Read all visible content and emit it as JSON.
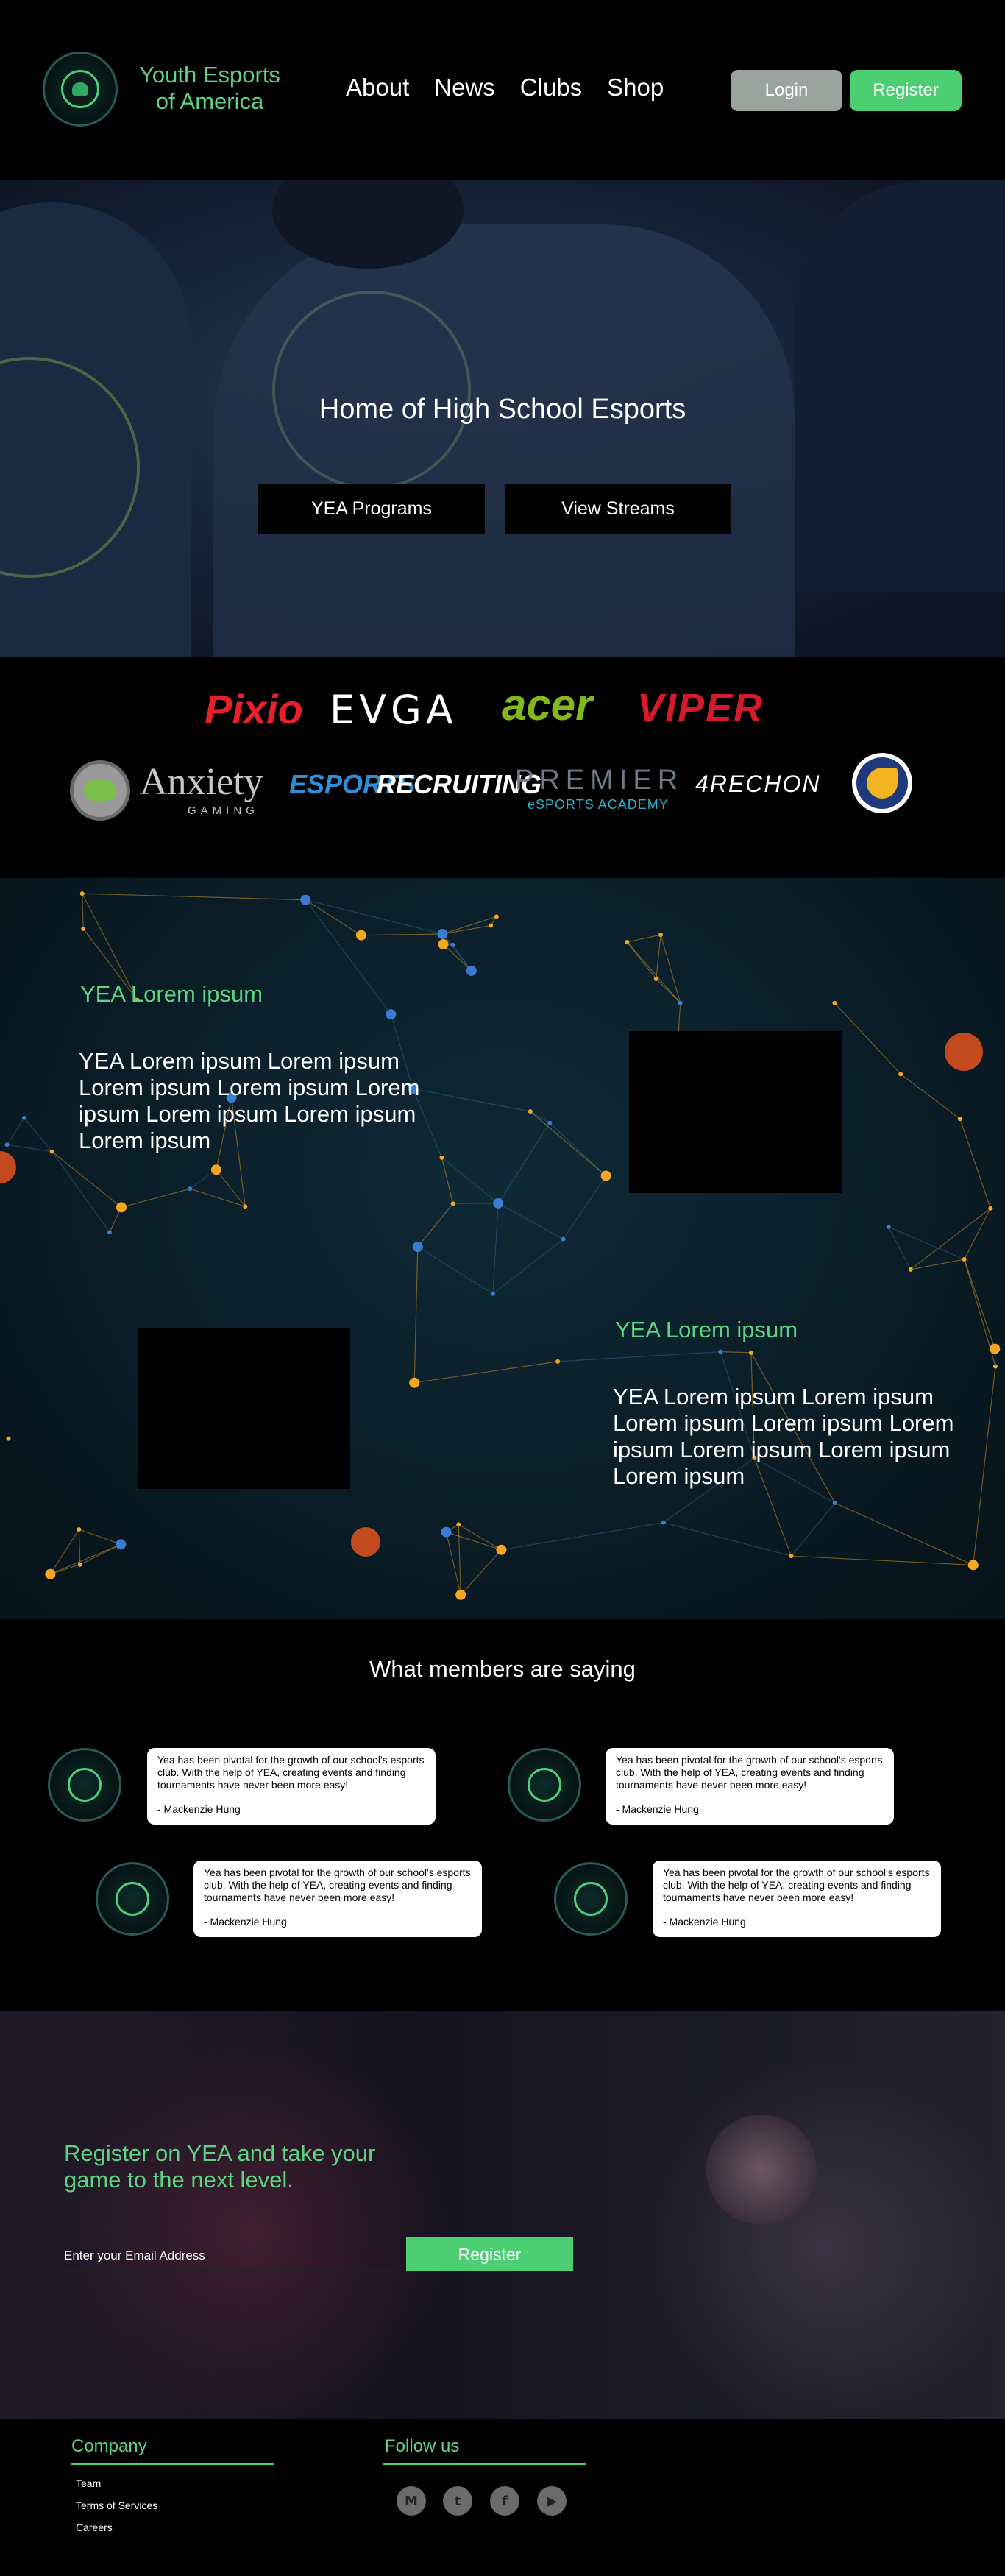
{
  "header": {
    "brand_line1": "Youth Esports",
    "brand_line2": "of America",
    "nav": [
      "About",
      "News",
      "Clubs",
      "Shop"
    ],
    "login_label": "Login",
    "register_label": "Register",
    "logo_icon": "yea-seal-logo"
  },
  "hero": {
    "title": "Home of High School Esports",
    "buttons": [
      "YEA Programs",
      "View Streams"
    ]
  },
  "sponsors": {
    "row1": [
      "Pixio",
      "EVGA",
      "acer",
      "VIPER"
    ],
    "row2": [
      "Anxiety",
      "GAMING",
      "ESPORTS",
      "RECRUITING",
      "PREMIER",
      "eSPORTS ACADEMY",
      "4RECHON"
    ]
  },
  "features": [
    {
      "heading": "YEA Lorem ipsum",
      "body": "YEA Lorem ipsum Lorem ipsum Lorem ipsum Lorem ipsum Lorem ipsum Lorem ipsum Lorem ipsum Lorem ipsum"
    },
    {
      "heading": "YEA Lorem ipsum",
      "body": "YEA Lorem ipsum Lorem ipsum Lorem ipsum Lorem ipsum Lorem ipsum Lorem ipsum Lorem ipsum Lorem ipsum"
    }
  ],
  "testimonials": {
    "title": "What members are saying",
    "items": [
      {
        "quote": "Yea has been pivotal for the growth of our school's esports club. With the help of YEA, creating events and finding tournaments have never been more easy!",
        "author": "- Mackenzie Hung"
      },
      {
        "quote": "Yea has been pivotal for the growth of our school's esports club. With the help of YEA, creating events and finding tournaments have never been more easy!",
        "author": "- Mackenzie Hung"
      },
      {
        "quote": "Yea has been pivotal for the growth of our school's esports club. With the help of YEA, creating events and finding tournaments have never been more easy!",
        "author": "- Mackenzie Hung"
      },
      {
        "quote": "Yea has been pivotal for the growth of our school's esports club. With the help of YEA, creating events and finding tournaments have never been more easy!",
        "author": "- Mackenzie Hung"
      }
    ]
  },
  "cta": {
    "title": "Register on YEA and take your game to the next level.",
    "email_placeholder": "Enter your Email Address",
    "button_label": "Register"
  },
  "footer": {
    "company_heading": "Company",
    "links": [
      "Team",
      "Terms of Services",
      "Careers"
    ],
    "follow_heading": "Follow us",
    "social_icons": [
      "medium-icon",
      "twitter-icon",
      "facebook-icon",
      "youtube-icon"
    ]
  },
  "colors": {
    "accent_green": "#4ccf73",
    "brand_text_green": "#5fd383",
    "login_grey": "#9aa39e",
    "network_orange": "#f5a623"
  }
}
